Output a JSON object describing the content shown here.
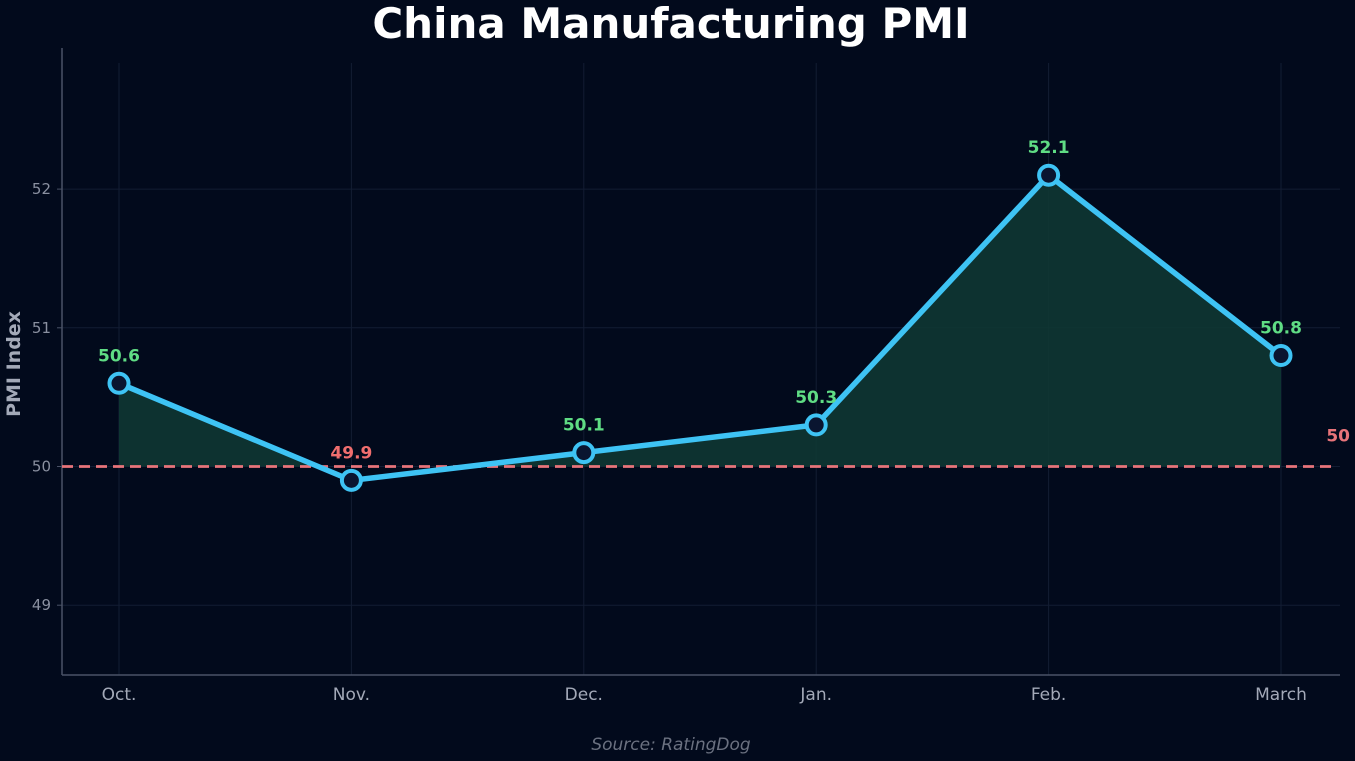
{
  "chart_data": {
    "type": "line",
    "title": "China Manufacturing PMI",
    "ylabel": "PMI Index",
    "xlabel": "",
    "categories": [
      "Oct.",
      "Nov.",
      "Dec.",
      "Jan.",
      "Feb.",
      "March"
    ],
    "series": [
      {
        "values": [
          50.6,
          49.9,
          50.1,
          50.3,
          52.1,
          50.8
        ]
      }
    ],
    "data_labels": [
      "50.6",
      "49.9",
      "50.1",
      "50.3",
      "52.1",
      "50.8"
    ],
    "yticks": [
      49,
      50,
      51,
      52
    ],
    "ytick_labels": [
      "49",
      "50",
      "51",
      "52"
    ],
    "ylim": [
      48.5,
      52.5
    ],
    "reference_line": {
      "value": 50,
      "label": "50",
      "style": "dashed"
    },
    "grid": true,
    "fill_above_reference": true,
    "source": "Source: RatingDog",
    "colors": {
      "background": "#020a1c",
      "line": "#3ec3f4",
      "marker_fill": "#0a1530",
      "fill": "#0f3a34",
      "grid": "#131d33",
      "axis": "#4a5266",
      "label_above": "#5fdc84",
      "label_below": "#f06e6e",
      "reference": "#e8747a"
    }
  }
}
